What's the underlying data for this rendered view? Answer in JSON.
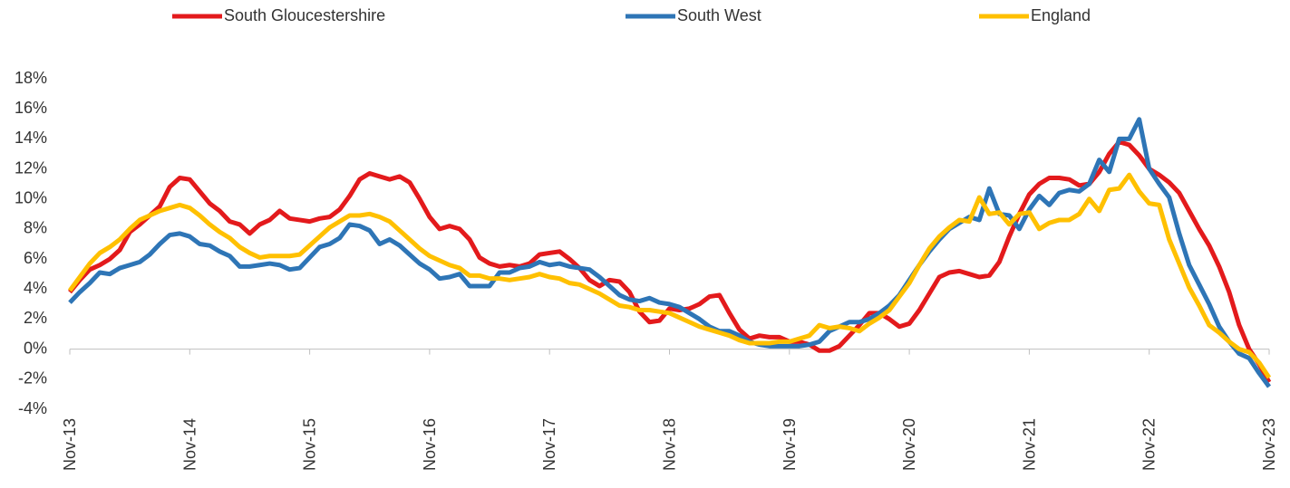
{
  "chart_data": {
    "type": "line",
    "categories": [
      "Nov-13",
      null,
      null,
      null,
      null,
      null,
      null,
      null,
      null,
      null,
      null,
      null,
      "Nov-14",
      null,
      null,
      null,
      null,
      null,
      null,
      null,
      null,
      null,
      null,
      null,
      "Nov-15",
      null,
      null,
      null,
      null,
      null,
      null,
      null,
      null,
      null,
      null,
      null,
      "Nov-16",
      null,
      null,
      null,
      null,
      null,
      null,
      null,
      null,
      null,
      null,
      null,
      "Nov-17",
      null,
      null,
      null,
      null,
      null,
      null,
      null,
      null,
      null,
      null,
      null,
      "Nov-18",
      null,
      null,
      null,
      null,
      null,
      null,
      null,
      null,
      null,
      null,
      null,
      "Nov-19",
      null,
      null,
      null,
      null,
      null,
      null,
      null,
      null,
      null,
      null,
      null,
      "Nov-20",
      null,
      null,
      null,
      null,
      null,
      null,
      null,
      null,
      null,
      null,
      null,
      "Nov-21",
      null,
      null,
      null,
      null,
      null,
      null,
      null,
      null,
      null,
      null,
      null,
      "Nov-22",
      null,
      null,
      null,
      null,
      null,
      null,
      null,
      null,
      null,
      null,
      null,
      "Nov-23"
    ],
    "series": [
      {
        "name": "South Gloucestershire",
        "color": "#e31a1c",
        "values": [
          3.8,
          4.6,
          5.3,
          5.6,
          6.0,
          6.6,
          7.8,
          8.3,
          8.9,
          9.5,
          10.8,
          11.4,
          11.3,
          10.5,
          9.7,
          9.2,
          8.5,
          8.3,
          7.7,
          8.3,
          8.6,
          9.2,
          8.7,
          8.6,
          8.5,
          8.7,
          8.8,
          9.3,
          10.2,
          11.3,
          11.7,
          11.5,
          11.3,
          11.5,
          11.1,
          10.0,
          8.8,
          8.0,
          8.2,
          8.0,
          7.3,
          6.1,
          5.7,
          5.5,
          5.6,
          5.5,
          5.7,
          6.3,
          6.4,
          6.5,
          6.0,
          5.4,
          4.6,
          4.2,
          4.6,
          4.5,
          3.8,
          2.5,
          1.8,
          1.9,
          2.7,
          2.6,
          2.7,
          3.0,
          3.5,
          3.6,
          2.4,
          1.3,
          0.7,
          0.9,
          0.8,
          0.8,
          0.5,
          0.5,
          0.3,
          -0.1,
          -0.1,
          0.2,
          0.9,
          1.6,
          2.4,
          2.4,
          2.0,
          1.5,
          1.7,
          2.6,
          3.7,
          4.8,
          5.1,
          5.2,
          5.0,
          4.8,
          4.9,
          5.8,
          7.5,
          9.0,
          10.3,
          11.0,
          11.4,
          11.4,
          11.3,
          10.9,
          11.0,
          11.8,
          13.0,
          13.8,
          13.6,
          12.9,
          12.0,
          11.6,
          11.1,
          10.4,
          9.2,
          8.0,
          6.9,
          5.5,
          3.8,
          1.6,
          0.0,
          -1.0,
          -2.2
        ]
      },
      {
        "name": "South West",
        "color": "#2e75b6",
        "values": [
          3.1,
          3.8,
          4.4,
          5.1,
          5.0,
          5.4,
          5.6,
          5.8,
          6.3,
          7.0,
          7.6,
          7.7,
          7.5,
          7.0,
          6.9,
          6.5,
          6.2,
          5.5,
          5.5,
          5.6,
          5.7,
          5.6,
          5.3,
          5.4,
          6.1,
          6.8,
          7.0,
          7.4,
          8.3,
          8.2,
          7.9,
          7.0,
          7.3,
          6.9,
          6.3,
          5.7,
          5.3,
          4.7,
          4.8,
          5.0,
          4.2,
          4.2,
          4.2,
          5.1,
          5.1,
          5.4,
          5.5,
          5.8,
          5.6,
          5.7,
          5.5,
          5.4,
          5.3,
          4.8,
          4.2,
          3.6,
          3.3,
          3.2,
          3.4,
          3.1,
          3.0,
          2.8,
          2.4,
          2.0,
          1.5,
          1.2,
          1.2,
          0.9,
          0.5,
          0.3,
          0.2,
          0.2,
          0.2,
          0.2,
          0.3,
          0.5,
          1.2,
          1.5,
          1.8,
          1.8,
          2.0,
          2.4,
          2.9,
          3.6,
          4.6,
          5.6,
          6.5,
          7.3,
          8.0,
          8.4,
          8.8,
          8.6,
          10.7,
          9.0,
          8.9,
          8.0,
          9.3,
          10.2,
          9.6,
          10.4,
          10.6,
          10.5,
          11.0,
          12.6,
          11.8,
          14.0,
          14.0,
          15.3,
          12.0,
          11.0,
          10.1,
          7.7,
          5.6,
          4.3,
          3.0,
          1.5,
          0.5,
          -0.3,
          -0.6,
          -1.6,
          -2.5
        ]
      },
      {
        "name": "England",
        "color": "#ffc000",
        "values": [
          3.9,
          4.8,
          5.7,
          6.4,
          6.8,
          7.3,
          8.0,
          8.6,
          8.9,
          9.2,
          9.4,
          9.6,
          9.4,
          8.9,
          8.3,
          7.8,
          7.4,
          6.8,
          6.4,
          6.1,
          6.2,
          6.2,
          6.2,
          6.3,
          6.9,
          7.5,
          8.1,
          8.5,
          8.9,
          8.9,
          9.0,
          8.8,
          8.5,
          7.9,
          7.3,
          6.7,
          6.2,
          5.9,
          5.6,
          5.4,
          4.9,
          4.9,
          4.7,
          4.7,
          4.6,
          4.7,
          4.8,
          5.0,
          4.8,
          4.7,
          4.4,
          4.3,
          4.0,
          3.7,
          3.3,
          2.9,
          2.8,
          2.6,
          2.6,
          2.5,
          2.4,
          2.1,
          1.8,
          1.5,
          1.3,
          1.1,
          0.9,
          0.6,
          0.4,
          0.4,
          0.4,
          0.5,
          0.5,
          0.7,
          0.9,
          1.6,
          1.4,
          1.5,
          1.4,
          1.2,
          1.7,
          2.1,
          2.6,
          3.5,
          4.4,
          5.6,
          6.7,
          7.5,
          8.1,
          8.6,
          8.5,
          10.1,
          9.0,
          9.1,
          8.3,
          9.0,
          9.1,
          8.0,
          8.4,
          8.6,
          8.6,
          9.0,
          10.0,
          9.2,
          10.6,
          10.7,
          11.6,
          10.5,
          9.7,
          9.6,
          7.3,
          5.7,
          4.1,
          2.9,
          1.6,
          1.1,
          0.5,
          0.0,
          -0.2,
          -0.9,
          -1.9
        ]
      }
    ],
    "ylim": [
      -4,
      18
    ],
    "yticks": [
      {
        "value": -4,
        "label": "-4%"
      },
      {
        "value": -2,
        "label": "-2%"
      },
      {
        "value": 0,
        "label": "0%"
      },
      {
        "value": 2,
        "label": "2%"
      },
      {
        "value": 4,
        "label": "4%"
      },
      {
        "value": 6,
        "label": "6%"
      },
      {
        "value": 8,
        "label": "8%"
      },
      {
        "value": 10,
        "label": "10%"
      },
      {
        "value": 12,
        "label": "12%"
      },
      {
        "value": 14,
        "label": "14%"
      },
      {
        "value": 16,
        "label": "16%"
      },
      {
        "value": 18,
        "label": "18%"
      }
    ],
    "grid": false,
    "legend": "top"
  }
}
